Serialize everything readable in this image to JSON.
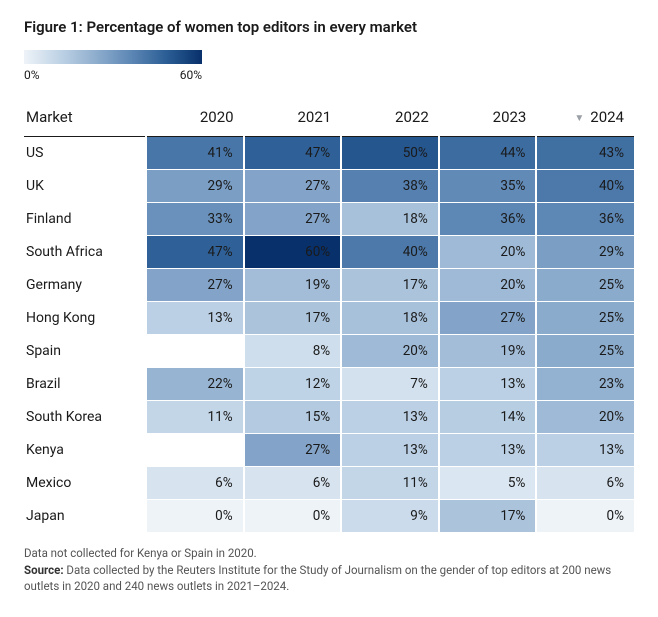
{
  "title": "Figure 1: Percentage of women top editors in every market",
  "legend": {
    "min_label": "0%",
    "max_label": "60%",
    "min_value": 0,
    "max_value": 60,
    "gradient_stops": [
      "#eef3f8",
      "#bfd3e6",
      "#8faece",
      "#5d87b5",
      "#2b5e95",
      "#08306b"
    ]
  },
  "columns": {
    "market_header": "Market",
    "years": [
      "2020",
      "2021",
      "2022",
      "2023",
      "2024"
    ],
    "sorted_column_index": 4
  },
  "sort_caret_glyph": "▼",
  "cell_text_color": "#1a1a1a",
  "empty_cell_color": "#ffffff",
  "rows": [
    {
      "market": "US",
      "values": [
        41,
        47,
        50,
        44,
        43
      ]
    },
    {
      "market": "UK",
      "values": [
        29,
        27,
        38,
        35,
        40
      ]
    },
    {
      "market": "Finland",
      "values": [
        33,
        27,
        18,
        36,
        36
      ]
    },
    {
      "market": "South Africa",
      "values": [
        47,
        60,
        40,
        20,
        29
      ]
    },
    {
      "market": "Germany",
      "values": [
        27,
        19,
        17,
        20,
        25
      ]
    },
    {
      "market": "Hong Kong",
      "values": [
        13,
        17,
        18,
        27,
        25
      ]
    },
    {
      "market": "Spain",
      "values": [
        null,
        8,
        20,
        19,
        25
      ]
    },
    {
      "market": "Brazil",
      "values": [
        22,
        12,
        7,
        13,
        23
      ]
    },
    {
      "market": "South Korea",
      "values": [
        11,
        15,
        13,
        14,
        20
      ]
    },
    {
      "market": "Kenya",
      "values": [
        null,
        27,
        13,
        13,
        13
      ]
    },
    {
      "market": "Mexico",
      "values": [
        6,
        6,
        11,
        5,
        6
      ]
    },
    {
      "market": "Japan",
      "values": [
        0,
        0,
        9,
        17,
        0
      ]
    }
  ],
  "footnote1": "Data not collected for Kenya or Spain in 2020.",
  "source_label": "Source:",
  "source_text": "Data collected by the Reuters Institute for the Study of Journalism on the gender of top editors at 200 news outlets in 2020 and 240 news outlets in 2021–2024."
}
